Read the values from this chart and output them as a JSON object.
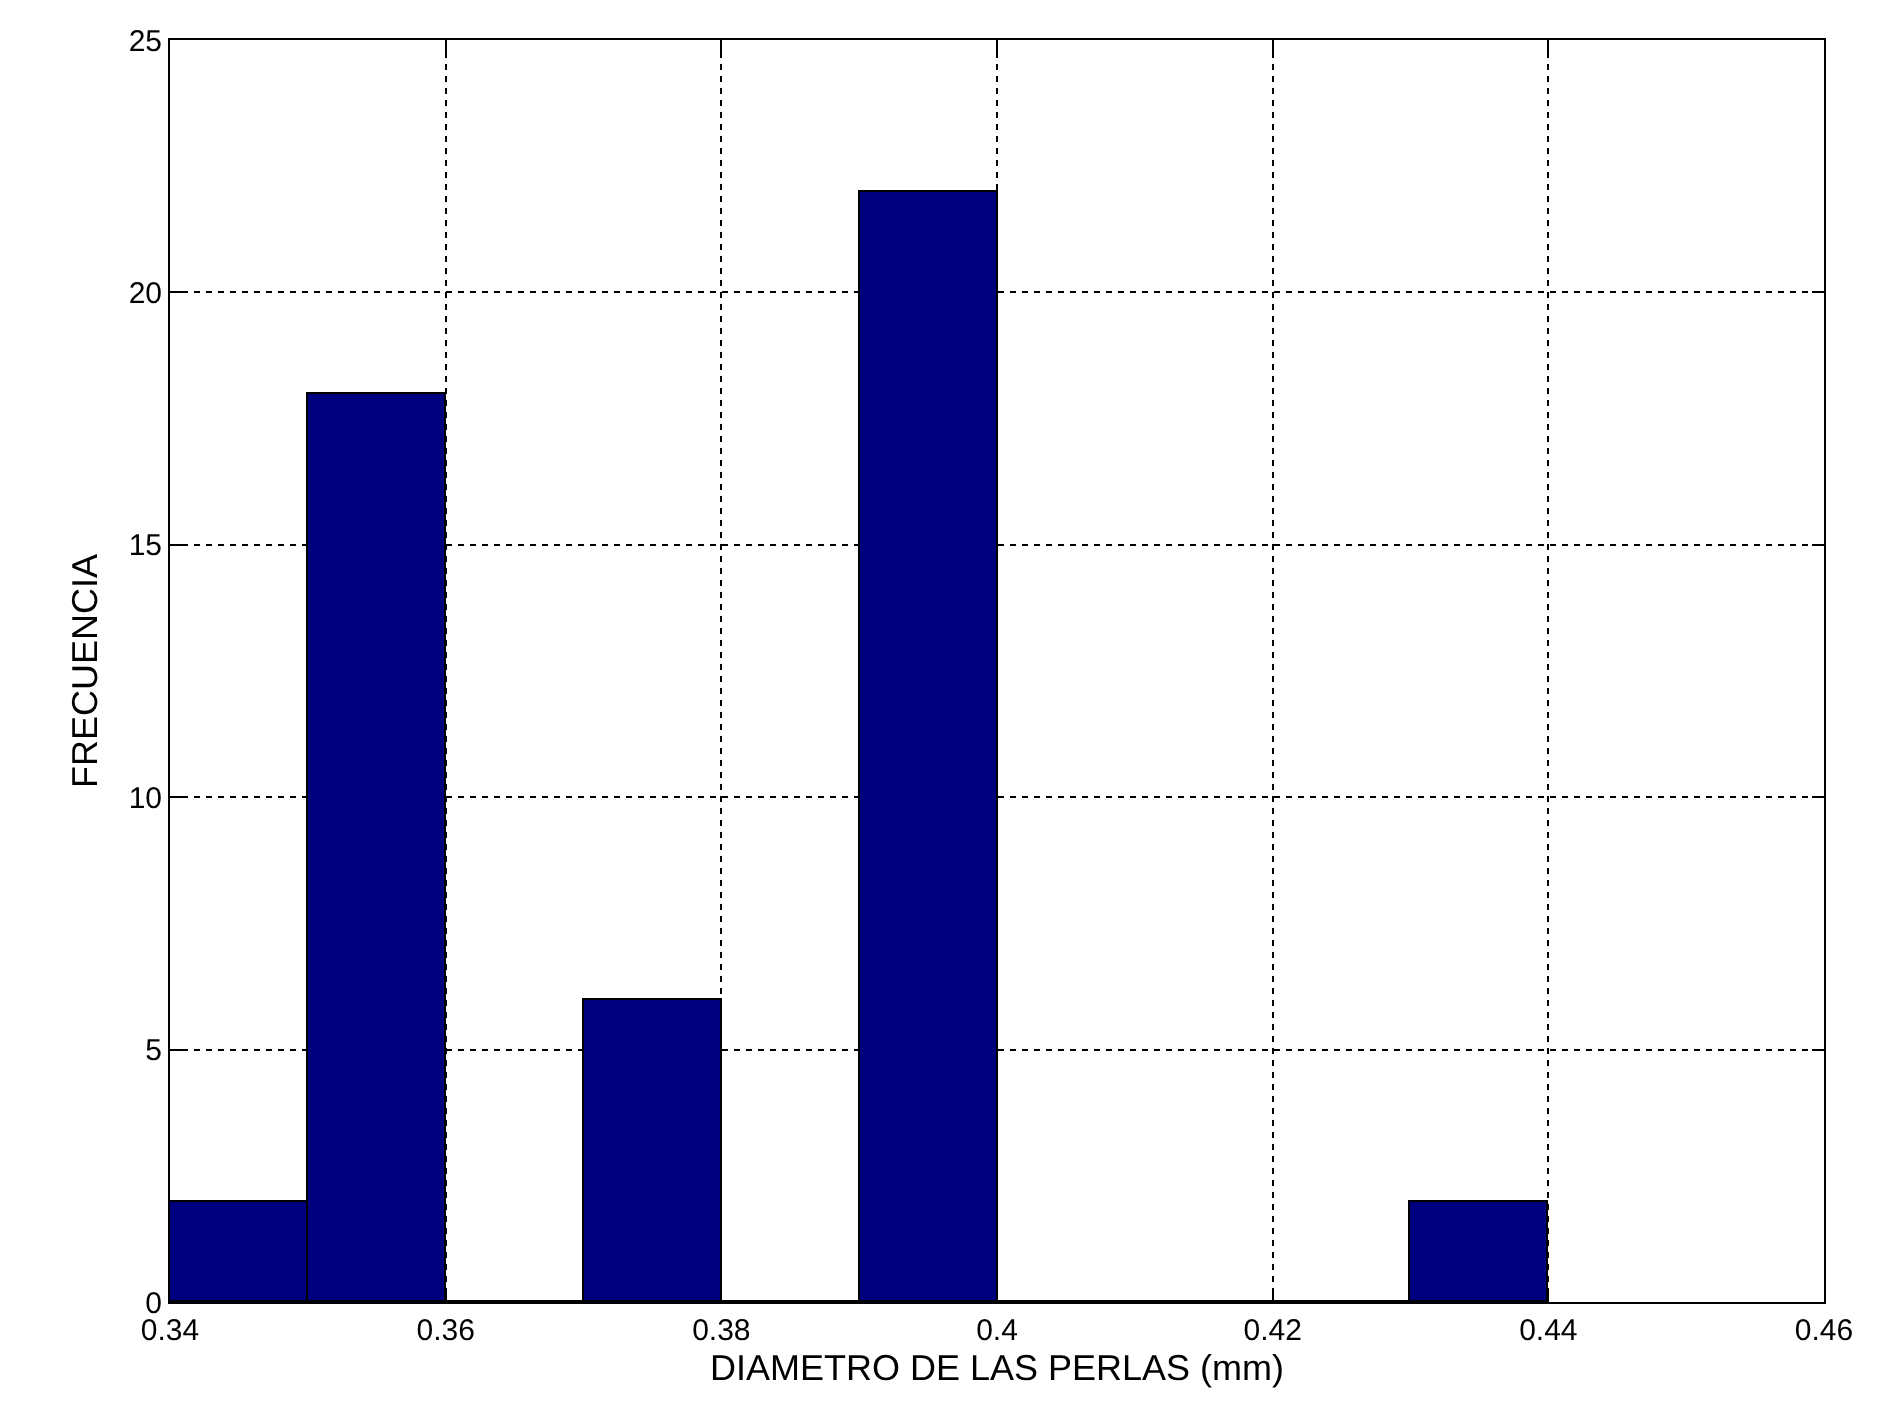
{
  "chart_data": {
    "type": "histogram",
    "xlabel": "DIAMETRO DE LAS PERLAS (mm)",
    "ylabel": "FRECUENCIA",
    "bins": [
      0.34,
      0.35,
      0.36,
      0.37,
      0.38,
      0.39,
      0.4,
      0.41,
      0.42,
      0.43,
      0.44
    ],
    "values": [
      2,
      18,
      0,
      6,
      0,
      22,
      0,
      0,
      0,
      2
    ],
    "color": "#00007f",
    "xlim": [
      0.34,
      0.46
    ],
    "xticks": [
      0.34,
      0.36,
      0.38,
      {
        "value": 0.4,
        "label": "0.4"
      },
      0.42,
      0.44,
      0.46
    ],
    "ylim": [
      0,
      25
    ],
    "yticks": [
      0,
      5,
      10,
      15,
      20,
      25
    ],
    "grid": true,
    "line_style": "dotted"
  }
}
